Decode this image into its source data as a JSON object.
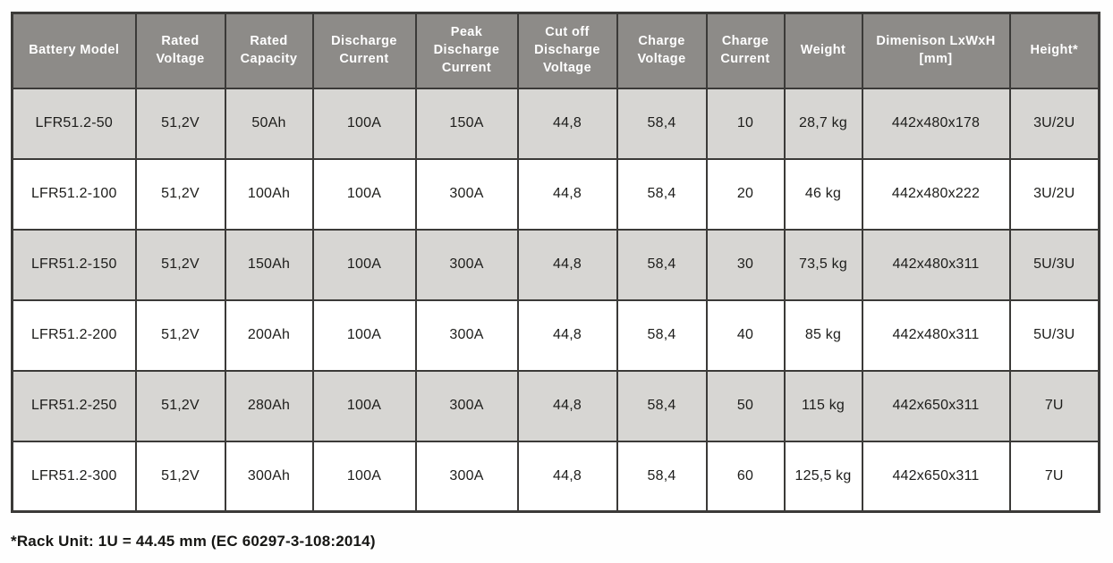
{
  "table": {
    "columns": [
      "Battery Model",
      "Rated Voltage",
      "Rated Capacity",
      "Discharge Current",
      "Peak Discharge Current",
      "Cut off Discharge Voltage",
      "Charge Voltage",
      "Charge Current",
      "Weight",
      "Dimenison LxWxH [mm]",
      "Height*"
    ],
    "rows": [
      [
        "LFR51.2-50",
        "51,2V",
        "50Ah",
        "100A",
        "150A",
        "44,8",
        "58,4",
        "10",
        "28,7 kg",
        "442x480x178",
        "3U/2U"
      ],
      [
        "LFR51.2-100",
        "51,2V",
        "100Ah",
        "100A",
        "300A",
        "44,8",
        "58,4",
        "20",
        "46 kg",
        "442x480x222",
        "3U/2U"
      ],
      [
        "LFR51.2-150",
        "51,2V",
        "150Ah",
        "100A",
        "300A",
        "44,8",
        "58,4",
        "30",
        "73,5 kg",
        "442x480x311",
        "5U/3U"
      ],
      [
        "LFR51.2-200",
        "51,2V",
        "200Ah",
        "100A",
        "300A",
        "44,8",
        "58,4",
        "40",
        "85 kg",
        "442x480x311",
        "5U/3U"
      ],
      [
        "LFR51.2-250",
        "51,2V",
        "280Ah",
        "100A",
        "300A",
        "44,8",
        "58,4",
        "50",
        "115 kg",
        "442x650x311",
        "7U"
      ],
      [
        "LFR51.2-300",
        "51,2V",
        "300Ah",
        "100A",
        "300A",
        "44,8",
        "58,4",
        "60",
        "125,5 kg",
        "442x650x311",
        "7U"
      ]
    ]
  },
  "footnote": "*Rack Unit: 1U = 44.45 mm (EC 60297-3-108:2014)",
  "colors": {
    "header_bg": "#8d8b88",
    "shaded_row_bg": "#d7d6d3",
    "plain_row_bg": "#ffffff",
    "border": "#3b3a38",
    "header_text": "#ffffff",
    "cell_text": "#1d1d1b"
  }
}
